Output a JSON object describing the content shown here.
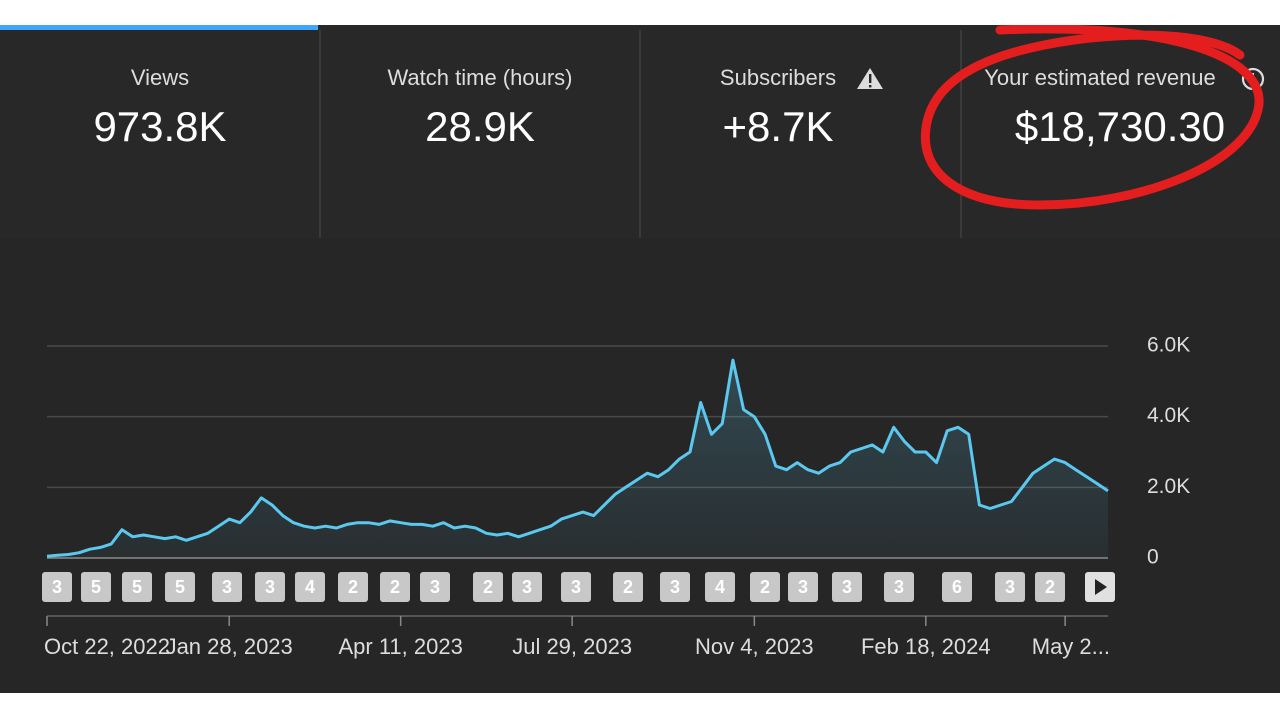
{
  "metrics": [
    {
      "label": "Views",
      "value": "973.8K"
    },
    {
      "label": "Watch time (hours)",
      "value": "28.9K"
    },
    {
      "label": "Subscribers",
      "value": "+8.7K"
    },
    {
      "label": "Your estimated revenue",
      "value": "$18,730.30"
    }
  ],
  "chart_data": {
    "type": "line",
    "categories": [
      "Oct 22, 2022",
      null,
      null,
      null,
      null,
      null,
      null,
      null,
      null,
      null,
      null,
      null,
      null,
      null,
      null,
      null,
      null,
      "Jan 28, 2023",
      null,
      null,
      null,
      null,
      null,
      null,
      null,
      null,
      null,
      null,
      null,
      null,
      null,
      null,
      null,
      "Apr 11, 2023",
      null,
      null,
      null,
      null,
      null,
      null,
      null,
      null,
      null,
      null,
      null,
      null,
      null,
      null,
      null,
      "Jul 29, 2023",
      null,
      null,
      null,
      null,
      null,
      null,
      null,
      null,
      null,
      null,
      null,
      null,
      null,
      null,
      null,
      null,
      "Nov 4, 2023",
      null,
      null,
      null,
      null,
      null,
      null,
      null,
      null,
      null,
      null,
      null,
      null,
      null,
      null,
      null,
      "Feb 18, 2024",
      null,
      null,
      null,
      null,
      null,
      null,
      null,
      null,
      null,
      null,
      null,
      null,
      "May 2...",
      null,
      null,
      null,
      null
    ],
    "series": [
      {
        "name": "Views",
        "color": "#5bc8ef",
        "values": [
          50,
          80,
          100,
          150,
          250,
          300,
          400,
          800,
          600,
          650,
          600,
          550,
          600,
          500,
          600,
          700,
          900,
          1100,
          1000,
          1300,
          1700,
          1500,
          1200,
          1000,
          900,
          850,
          900,
          850,
          950,
          1000,
          1000,
          950,
          1050,
          1000,
          950,
          950,
          900,
          1000,
          850,
          900,
          850,
          700,
          650,
          700,
          600,
          700,
          800,
          900,
          1100,
          1200,
          1300,
          1200,
          1500,
          1800,
          2000,
          2200,
          2400,
          2300,
          2500,
          2800,
          3000,
          4400,
          3500,
          3800,
          5600,
          4200,
          4000,
          3500,
          2600,
          2500,
          2700,
          2500,
          2400,
          2600,
          2700,
          3000,
          3100,
          3200,
          3000,
          3700,
          3300,
          3000,
          3000,
          2700,
          3600,
          3700,
          3500,
          1500,
          1400,
          1500,
          1600,
          2000,
          2400,
          2600,
          2800,
          2700,
          2500,
          2300,
          2100,
          1900
        ]
      }
    ],
    "ylim": [
      0,
      6000
    ],
    "yticks": [
      0,
      {
        "value": 2000,
        "label": "2.0K"
      },
      {
        "value": 4000,
        "label": "4.0K"
      },
      {
        "value": 6000,
        "label": "6.0K"
      }
    ],
    "grid": true,
    "markers": [
      "3",
      "5",
      "5",
      "5",
      "3",
      "3",
      "4",
      "2",
      "2",
      "3",
      "2",
      "3",
      "3",
      "2",
      "3",
      "4",
      "2",
      "3",
      "3",
      "3",
      "6",
      "3",
      "2"
    ]
  }
}
